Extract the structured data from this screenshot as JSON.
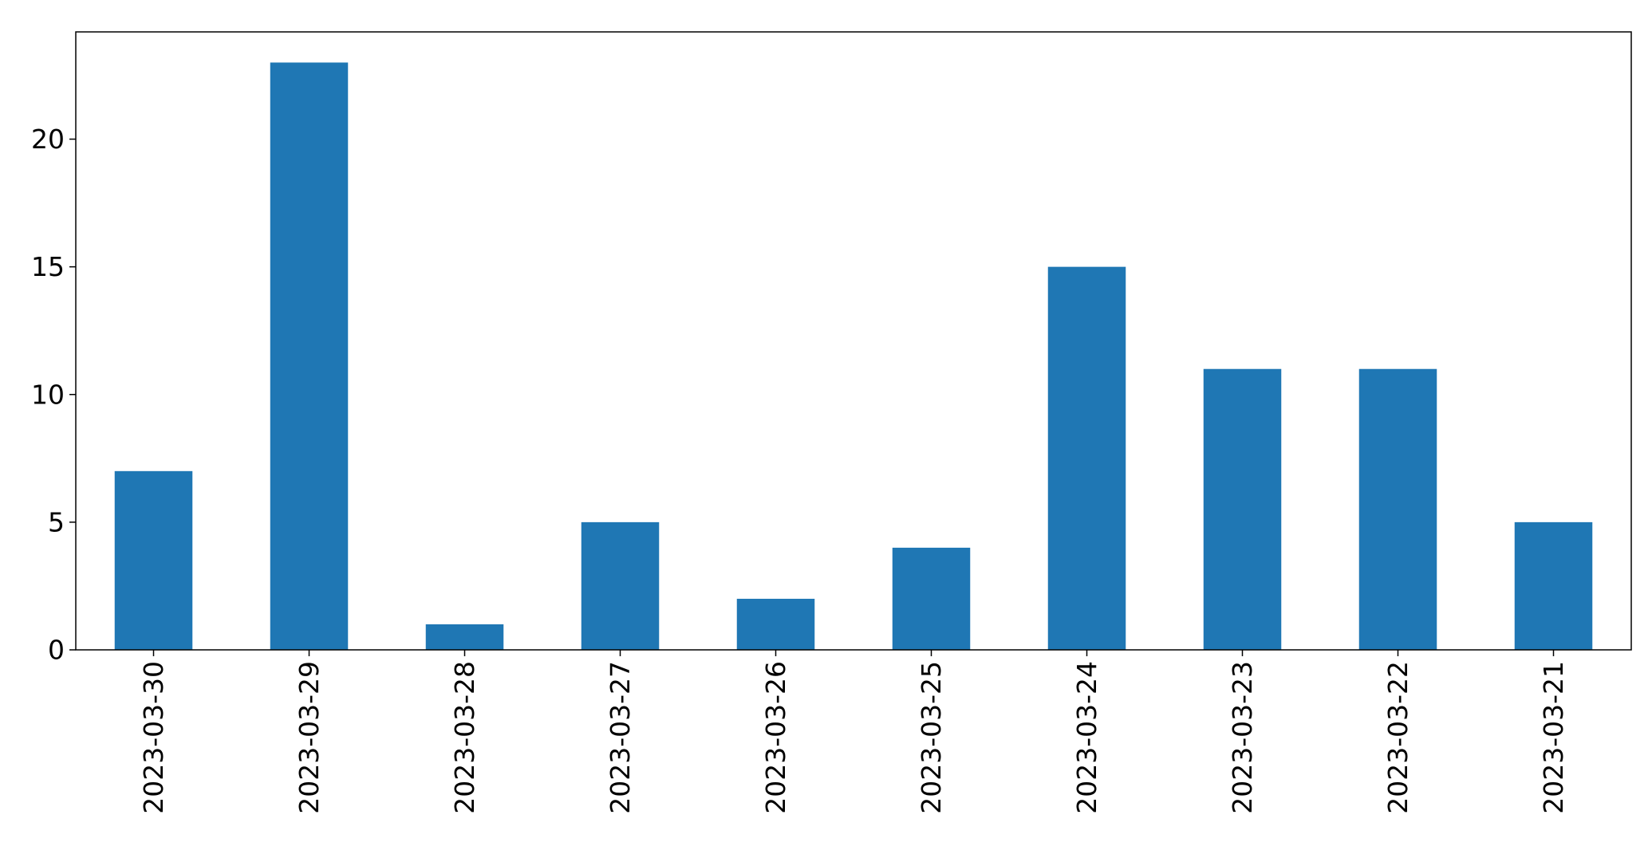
{
  "chart_data": {
    "type": "bar",
    "title": "",
    "xlabel": "",
    "ylabel": "",
    "categories": [
      "2023-03-30",
      "2023-03-29",
      "2023-03-28",
      "2023-03-27",
      "2023-03-26",
      "2023-03-25",
      "2023-03-24",
      "2023-03-23",
      "2023-03-22",
      "2023-03-21"
    ],
    "values": [
      7,
      23,
      1,
      5,
      2,
      4,
      15,
      11,
      11,
      5
    ],
    "ylim": [
      0,
      24.2
    ],
    "yticks": [
      0,
      5,
      10,
      15,
      20
    ],
    "bar_color": "#1f77b4",
    "grid": false,
    "legend": "none"
  }
}
